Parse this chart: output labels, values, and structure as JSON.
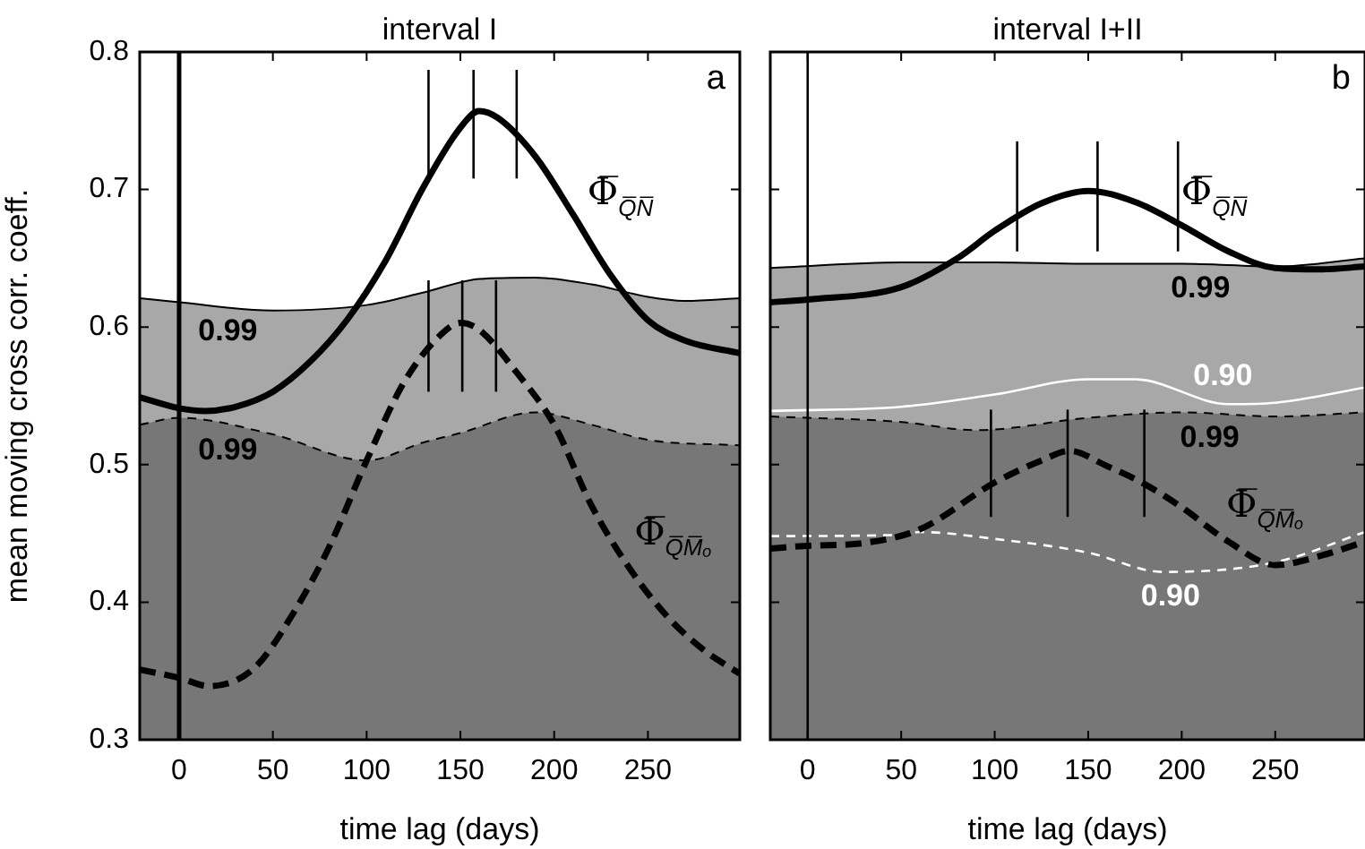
{
  "chart_data": [
    {
      "type": "line",
      "title": "interval I",
      "xlabel": "time lag (days)",
      "ylabel": "mean moving cross corr. coeff.",
      "xlim": [
        -21,
        299
      ],
      "xticks": [
        0,
        50,
        100,
        150,
        200,
        250
      ],
      "ylim": [
        0.3,
        0.8
      ],
      "yticks": [
        0.3,
        0.4,
        0.5,
        0.6,
        0.7,
        0.8
      ],
      "legend": false,
      "grid": false,
      "ref_lines": [
        {
          "axis": "x",
          "value": 0,
          "color": "#000000"
        }
      ],
      "series": [
        {
          "type": "area",
          "color": "#a8a8a8",
          "line_style": "solid",
          "x": [
            -21,
            0,
            50,
            100,
            130,
            160,
            190,
            220,
            250,
            270,
            299
          ],
          "values": [
            0.621,
            0.618,
            0.612,
            0.616,
            0.625,
            0.635,
            0.636,
            0.631,
            0.622,
            0.619,
            0.621
          ]
        },
        {
          "type": "area",
          "color": "#777777",
          "line_style": "dashed",
          "x": [
            -21,
            0,
            50,
            100,
            130,
            150,
            190,
            220,
            250,
            299
          ],
          "values": [
            0.529,
            0.534,
            0.522,
            0.503,
            0.516,
            0.523,
            0.538,
            0.529,
            0.518,
            0.514
          ]
        },
        {
          "type": "line",
          "color": "#000000",
          "line_style": "solid",
          "x": [
            -21,
            0,
            14,
            30,
            50,
            70,
            90,
            110,
            130,
            150,
            160,
            170,
            190,
            210,
            230,
            250,
            270,
            299
          ],
          "values": [
            0.549,
            0.541,
            0.539,
            0.542,
            0.553,
            0.575,
            0.606,
            0.648,
            0.701,
            0.745,
            0.757,
            0.752,
            0.724,
            0.682,
            0.638,
            0.605,
            0.59,
            0.581
          ]
        },
        {
          "type": "line",
          "color": "#000000",
          "line_style": "dashed",
          "x": [
            -21,
            0,
            16,
            40,
            60,
            80,
            100,
            120,
            140,
            150,
            160,
            180,
            200,
            220,
            240,
            260,
            280,
            299
          ],
          "values": [
            0.351,
            0.345,
            0.339,
            0.352,
            0.39,
            0.44,
            0.503,
            0.56,
            0.595,
            0.603,
            0.598,
            0.567,
            0.529,
            0.47,
            0.425,
            0.39,
            0.365,
            0.348
          ]
        },
        {
          "type": "line",
          "color": "#000000",
          "line_style": "solid",
          "x": [
            133,
            133
          ],
          "values": [
            0.708,
            0.787
          ]
        },
        {
          "type": "line",
          "color": "#000000",
          "line_style": "solid",
          "x": [
            157,
            157
          ],
          "values": [
            0.708,
            0.787
          ]
        },
        {
          "type": "line",
          "color": "#000000",
          "line_style": "solid",
          "x": [
            180,
            180
          ],
          "values": [
            0.708,
            0.787
          ]
        },
        {
          "type": "line",
          "color": "#000000",
          "line_style": "solid",
          "x": [
            133,
            133
          ],
          "values": [
            0.553,
            0.634
          ]
        },
        {
          "type": "line",
          "color": "#000000",
          "line_style": "solid",
          "x": [
            151,
            151
          ],
          "values": [
            0.553,
            0.634
          ]
        },
        {
          "type": "line",
          "color": "#000000",
          "line_style": "solid",
          "x": [
            169,
            169
          ],
          "values": [
            0.553,
            0.634
          ]
        }
      ],
      "annotations": [
        "a",
        {
          "text": "0.99",
          "x": 26,
          "y": 0.615
        },
        {
          "text": "0.99",
          "x": 26,
          "y": 0.528
        },
        {
          "text": "Φ̅$_{Q̅N̅}$",
          "x": 212,
          "y": 0.678
        },
        {
          "text": "Φ̅$_{Q̅M̅ₒ}$",
          "x": 237,
          "y": 0.431
        }
      ]
    },
    {
      "type": "line",
      "title": "interval I+II",
      "xlabel": "time lag (days)",
      "xlim": [
        -20,
        298
      ],
      "xticks": [
        0,
        50,
        100,
        150,
        200,
        250
      ],
      "ylim": [
        0.3,
        0.8
      ],
      "yticks": [
        0.3,
        0.4,
        0.5,
        0.6,
        0.7,
        0.8
      ],
      "legend": false,
      "grid": false,
      "tick_labels": "x",
      "ref_lines": [
        {
          "axis": "x",
          "value": 0,
          "color": "#000000"
        }
      ],
      "series": [
        {
          "type": "area",
          "color": "#a8a8a8",
          "line_style": "solid",
          "x": [
            -20,
            50,
            100,
            150,
            200,
            250,
            298
          ],
          "values": [
            0.643,
            0.647,
            0.647,
            0.646,
            0.646,
            0.644,
            0.65
          ]
        },
        {
          "type": "area",
          "color": "#777777",
          "line_style": "dashed",
          "x": [
            -20,
            50,
            90,
            150,
            200,
            250,
            298
          ],
          "values": [
            0.535,
            0.531,
            0.525,
            0.534,
            0.538,
            0.535,
            0.538
          ]
        },
        {
          "type": "line",
          "color": "#ffffff",
          "line_style": "solid",
          "x": [
            -20,
            50,
            100,
            150,
            175,
            225,
            250,
            298
          ],
          "values": [
            0.539,
            0.542,
            0.551,
            0.562,
            0.562,
            0.544,
            0.545,
            0.556
          ]
        },
        {
          "type": "line",
          "color": "#ffffff",
          "line_style": "dashed",
          "x": [
            -20,
            50,
            60,
            100,
            150,
            190,
            250,
            298
          ],
          "values": [
            0.448,
            0.449,
            0.451,
            0.446,
            0.436,
            0.422,
            0.429,
            0.451
          ]
        },
        {
          "type": "line",
          "color": "#000000",
          "line_style": "solid",
          "x": [
            -20,
            0,
            50,
            80,
            100,
            125,
            150,
            175,
            200,
            225,
            250,
            275,
            298
          ],
          "values": [
            0.618,
            0.62,
            0.629,
            0.65,
            0.67,
            0.69,
            0.699,
            0.691,
            0.674,
            0.655,
            0.643,
            0.642,
            0.644
          ]
        },
        {
          "type": "line",
          "color": "#000000",
          "line_style": "dashed",
          "x": [
            -20,
            0,
            30,
            60,
            100,
            125,
            140,
            160,
            180,
            200,
            225,
            250,
            275,
            298
          ],
          "values": [
            0.439,
            0.441,
            0.443,
            0.453,
            0.487,
            0.503,
            0.51,
            0.499,
            0.486,
            0.469,
            0.444,
            0.427,
            0.434,
            0.444
          ]
        },
        {
          "type": "line",
          "color": "#000000",
          "line_style": "solid",
          "x": [
            112,
            112
          ],
          "values": [
            0.655,
            0.735
          ]
        },
        {
          "type": "line",
          "color": "#000000",
          "line_style": "solid",
          "x": [
            155,
            155
          ],
          "values": [
            0.655,
            0.735
          ]
        },
        {
          "type": "line",
          "color": "#000000",
          "line_style": "solid",
          "x": [
            198,
            198
          ],
          "values": [
            0.655,
            0.735
          ]
        },
        {
          "type": "line",
          "color": "#000000",
          "line_style": "solid",
          "x": [
            98,
            98
          ],
          "values": [
            0.462,
            0.54
          ]
        },
        {
          "type": "line",
          "color": "#000000",
          "line_style": "solid",
          "x": [
            139,
            139
          ],
          "values": [
            0.462,
            0.54
          ]
        },
        {
          "type": "line",
          "color": "#000000",
          "line_style": "solid",
          "x": [
            180,
            180
          ],
          "values": [
            0.462,
            0.54
          ]
        }
      ],
      "annotations": [
        "b",
        {
          "text": "0.99",
          "x": 210,
          "y": 0.646
        },
        {
          "text": "0.90",
          "x": 222,
          "y": 0.546
        },
        {
          "text": "0.99",
          "x": 215,
          "y": 0.537
        },
        {
          "text": "0.90",
          "x": 194,
          "y": 0.422
        },
        {
          "text": "Φ̅$_{Q̅N̅}$",
          "x": 194,
          "y": 0.678
        },
        {
          "text": "Φ̅$_{Q̅M̅ₒ}$",
          "x": 218,
          "y": 0.451
        }
      ]
    }
  ]
}
